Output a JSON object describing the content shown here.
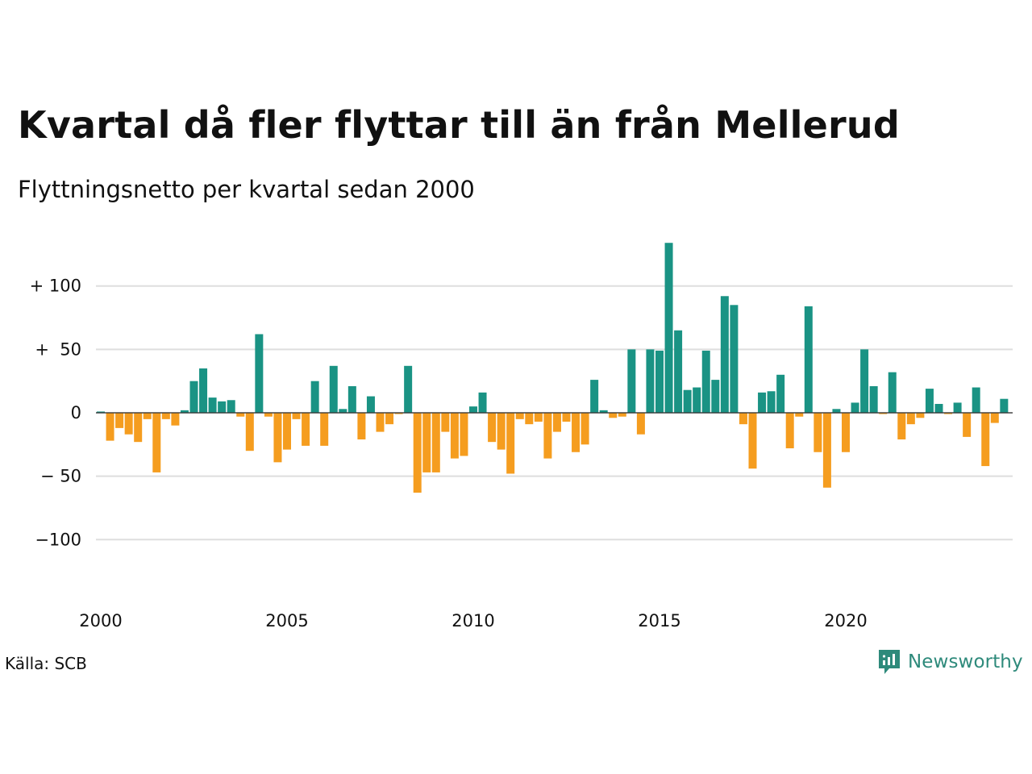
{
  "title": "Kvartal då fler flyttar till än från Mellerud",
  "subtitle": "Flyttningsnetto per kvartal sedan 2000",
  "source": "Källa: SCB",
  "brand": {
    "name": "Newsworthy",
    "icon": "newsworthy-logo-icon"
  },
  "colors": {
    "positive": "#1a9384",
    "negative": "#f59d1f",
    "gridline": "#dedede",
    "text": "#111111"
  },
  "chart_data": {
    "type": "bar",
    "title": "Kvartal då fler flyttar till än från Mellerud",
    "subtitle": "Flyttningsnetto per kvartal sedan 2000",
    "xlabel": "",
    "ylabel": "",
    "ylim": [
      -120,
      140
    ],
    "grid": true,
    "y_ticks": [
      {
        "value": 100,
        "label": "+ 100"
      },
      {
        "value": 50,
        "label": "+  50"
      },
      {
        "value": 0,
        "label": "0"
      },
      {
        "value": -50,
        "label": "− 50"
      },
      {
        "value": -100,
        "label": "−100"
      }
    ],
    "x_ticks": [
      {
        "value": 2000,
        "label": "2000"
      },
      {
        "value": 2005,
        "label": "2005"
      },
      {
        "value": 2010,
        "label": "2010"
      },
      {
        "value": 2015,
        "label": "2015"
      },
      {
        "value": 2020,
        "label": "2020"
      }
    ],
    "x_range": [
      2000,
      2024.75
    ],
    "start_year": 2000,
    "values": [
      1,
      -22,
      -12,
      -17,
      -23,
      -5,
      -47,
      -5,
      -10,
      2,
      25,
      35,
      12,
      9,
      10,
      -3,
      -30,
      62,
      -3,
      -39,
      -29,
      -5,
      -26,
      25,
      -26,
      37,
      3,
      21,
      -21,
      13,
      -15,
      -9,
      -1,
      37,
      -63,
      -47,
      -47,
      -15,
      -36,
      -34,
      5,
      16,
      -23,
      -29,
      -48,
      -5,
      -9,
      -7,
      -36,
      -15,
      -7,
      -31,
      -25,
      26,
      2,
      -4,
      -3,
      50,
      -17,
      50,
      49,
      134,
      65,
      18,
      20,
      49,
      26,
      92,
      85,
      -9,
      -44,
      16,
      17,
      30,
      -28,
      -3,
      84,
      -31,
      -59,
      3,
      -31,
      8,
      50,
      21,
      -1,
      32,
      -21,
      -9,
      -4,
      19,
      7,
      -1,
      8,
      -19,
      20,
      -42,
      -8,
      11
    ]
  }
}
